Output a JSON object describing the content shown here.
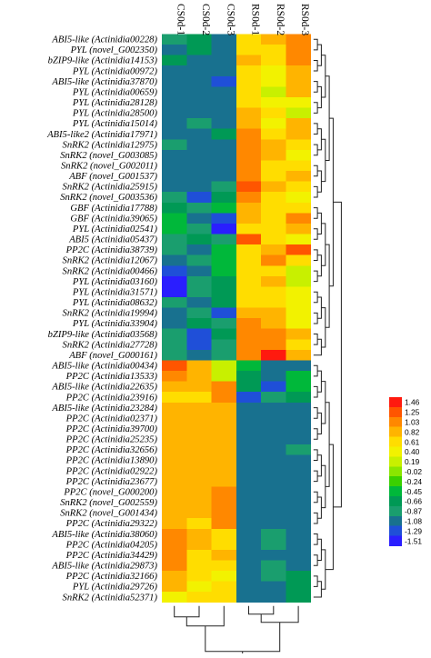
{
  "chart_data": {
    "type": "heatmap",
    "columns": [
      "CS0d-1",
      "CS0d-2",
      "CS0d-3",
      "RS0d-1",
      "RS0d-2",
      "RS0d-3"
    ],
    "rows": [
      "ABI5-like (Actinidia00228)",
      "PYL (novel_G002350)",
      "bZIP9-like (Actinidia14153)",
      "PYL (Actinidia00972)",
      "ABI5-like (Actinidia37870)",
      "PYL (Actinidia00659)",
      "PYL (Actinidia28128)",
      "PYL (Actinidia28500)",
      "PYL (Actinidia15014)",
      "ABI5-like2 (Actinidia17971)",
      "SnRK2 (Actinidia12975)",
      "SnRK2 (novel_G003085)",
      "SnRK2 (novel_G002011)",
      "ABF (novel_G001537)",
      "SnRK2 (Actinidia25915)",
      "SnRK2 (novel_G003536)",
      "GBF (Actinidia17788)",
      "GBF (Actinidia39065)",
      "PYL (Actinidia02541)",
      "ABI5 (Actinidia05437)",
      "PP2C (Actinidia38739)",
      "SnRK2 (Actinidia12067)",
      "SnRK2 (Actinidia00466)",
      "PYL (Actinidia03160)",
      "PYL (Actinidia31571)",
      "PYL (Actinidia08632)",
      "SnRK2 (Actinidia19994)",
      "PYL (Actinidia33904)",
      "bZIP9-like (Actinidia03568)",
      "SnRK2 (Actinidia27728)",
      "ABF (novel_G000161)",
      "ABI5-like (Actinidia00434)",
      "PP2C (Actinidia13533)",
      "ABI5-like (Actinidia22635)",
      "PP2C (Actinidia23916)",
      "ABI5-like (Actinidia23284)",
      "PP2C (Actinidia02371)",
      "PP2C (Actinidia39700)",
      "PP2C (Actinidia25235)",
      "PP2C (Actinidia32656)",
      "PP2C (Actinidia13890)",
      "PP2C (Actinidia02922)",
      "PP2C (Actinidia23677)",
      "PP2C (novel_G000200)",
      "SnRK2 (novel_G002559)",
      "SnRK2 (novel_G001434)",
      "PP2C (Actinidia29322)",
      "ABI5-like (Actinidia38060)",
      "PP2C (Actinidia04205)",
      "PP2C (Actinidia34429)",
      "ABI5-like (Actinidia29873)",
      "PP2C (Actinidia32166)",
      "PYL (Actinidia29726)",
      "SnRK2 (Actinidia52371)"
    ],
    "values": [
      [
        -0.87,
        -0.66,
        -1.08,
        0.61,
        0.82,
        1.03
      ],
      [
        -1.08,
        -0.66,
        -1.08,
        0.61,
        0.61,
        1.03
      ],
      [
        -0.66,
        -1.08,
        -1.08,
        0.82,
        0.61,
        1.03
      ],
      [
        -1.08,
        -1.08,
        -1.08,
        0.61,
        0.4,
        0.82
      ],
      [
        -1.08,
        -1.08,
        -1.29,
        0.61,
        0.4,
        0.82
      ],
      [
        -1.08,
        -1.08,
        -1.08,
        0.61,
        0.19,
        0.82
      ],
      [
        -1.08,
        -1.08,
        -1.08,
        0.61,
        0.4,
        0.4
      ],
      [
        -1.08,
        -1.08,
        -1.08,
        0.82,
        0.61,
        0.19
      ],
      [
        -1.08,
        -0.87,
        -1.08,
        0.82,
        0.4,
        0.82
      ],
      [
        -1.08,
        -1.08,
        -0.66,
        1.03,
        0.61,
        0.82
      ],
      [
        -0.87,
        -1.08,
        -1.08,
        1.03,
        0.82,
        0.61
      ],
      [
        -1.08,
        -1.08,
        -1.08,
        1.03,
        0.82,
        0.4
      ],
      [
        -1.08,
        -1.08,
        -1.08,
        1.03,
        0.61,
        0.61
      ],
      [
        -1.08,
        -1.08,
        -1.08,
        1.03,
        0.61,
        0.82
      ],
      [
        -1.08,
        -1.08,
        -0.87,
        1.25,
        0.82,
        0.61
      ],
      [
        -0.87,
        -1.29,
        -0.66,
        1.03,
        0.61,
        0.4
      ],
      [
        -0.66,
        -0.87,
        -0.45,
        0.82,
        0.61,
        0.61
      ],
      [
        -0.45,
        -1.08,
        -1.29,
        0.82,
        0.61,
        1.03
      ],
      [
        -0.45,
        -0.87,
        -1.51,
        0.61,
        0.61,
        0.82
      ],
      [
        -0.87,
        -0.66,
        -0.87,
        1.25,
        0.61,
        0.4
      ],
      [
        -0.87,
        -1.08,
        -0.45,
        0.61,
        0.82,
        1.25
      ],
      [
        -1.08,
        -0.87,
        -0.45,
        0.61,
        1.03,
        0.61
      ],
      [
        -1.29,
        -1.08,
        -0.45,
        0.61,
        0.61,
        0.19
      ],
      [
        -1.51,
        -0.87,
        -0.66,
        0.61,
        0.82,
        0.19
      ],
      [
        -1.51,
        -0.87,
        -0.66,
        0.61,
        0.61,
        0.4
      ],
      [
        -0.87,
        -1.08,
        -0.66,
        0.61,
        0.61,
        0.4
      ],
      [
        -1.08,
        -0.87,
        -1.29,
        0.82,
        0.82,
        0.4
      ],
      [
        -1.08,
        -0.66,
        -0.87,
        1.03,
        0.82,
        0.4
      ],
      [
        -0.87,
        -1.29,
        -0.66,
        1.03,
        1.03,
        0.82
      ],
      [
        -0.87,
        -1.29,
        -0.87,
        1.03,
        1.03,
        0.61
      ],
      [
        -0.87,
        -1.08,
        -0.87,
        1.03,
        1.46,
        0.82
      ],
      [
        1.25,
        0.82,
        0.19,
        -0.45,
        -1.08,
        -1.08
      ],
      [
        1.03,
        0.82,
        0.19,
        -0.66,
        -1.08,
        -0.45
      ],
      [
        0.82,
        0.82,
        1.03,
        -0.66,
        -1.29,
        -0.45
      ],
      [
        0.61,
        0.61,
        1.03,
        -1.29,
        -0.87,
        -0.66
      ],
      [
        0.82,
        0.82,
        0.82,
        -1.08,
        -1.08,
        -1.08
      ],
      [
        0.82,
        0.82,
        0.82,
        -1.08,
        -1.08,
        -1.08
      ],
      [
        0.82,
        0.82,
        0.82,
        -1.08,
        -1.08,
        -1.08
      ],
      [
        0.82,
        0.82,
        0.82,
        -1.08,
        -1.08,
        -1.08
      ],
      [
        0.82,
        0.82,
        0.82,
        -1.08,
        -1.08,
        -0.87
      ],
      [
        0.82,
        0.82,
        0.82,
        -1.08,
        -1.08,
        -1.08
      ],
      [
        0.82,
        0.82,
        0.82,
        -1.08,
        -1.08,
        -1.08
      ],
      [
        0.82,
        0.82,
        0.82,
        -1.08,
        -1.08,
        -1.08
      ],
      [
        0.82,
        0.82,
        1.03,
        -1.08,
        -1.08,
        -1.08
      ],
      [
        0.82,
        0.82,
        1.03,
        -1.08,
        -1.08,
        -1.08
      ],
      [
        0.82,
        0.82,
        1.03,
        -1.08,
        -1.08,
        -1.08
      ],
      [
        0.82,
        0.61,
        1.03,
        -1.08,
        -1.08,
        -1.08
      ],
      [
        1.03,
        0.82,
        0.61,
        -1.08,
        -0.87,
        -1.08
      ],
      [
        1.03,
        0.82,
        0.61,
        -1.08,
        -0.87,
        -1.08
      ],
      [
        1.03,
        0.61,
        0.82,
        -1.08,
        -1.08,
        -1.08
      ],
      [
        1.03,
        0.61,
        0.61,
        -1.08,
        -0.87,
        -1.08
      ],
      [
        0.82,
        0.61,
        0.4,
        -1.08,
        -0.87,
        -0.66
      ],
      [
        0.82,
        0.4,
        0.61,
        -1.08,
        -1.08,
        -0.66
      ],
      [
        0.4,
        0.61,
        0.61,
        -1.08,
        -1.08,
        -0.66
      ]
    ],
    "legend": {
      "ticks": [
        "1.46",
        "1.25",
        "1.03",
        "0.82",
        "0.61",
        "0.40",
        "0.19",
        "-0.02",
        "-0.24",
        "-0.45",
        "-0.66",
        "-0.87",
        "-1.08",
        "-1.29",
        "-1.51"
      ],
      "colors": [
        "#ff1a0f",
        "#ff5500",
        "#ff8800",
        "#ffb400",
        "#ffdd00",
        "#f2f200",
        "#c8f000",
        "#8ae600",
        "#3ad000",
        "#00b83a",
        "#009955",
        "#1a9e6e",
        "#18718f",
        "#1f4fd8",
        "#2a1eff"
      ],
      "placement": "right"
    },
    "title": "",
    "xlabel": "",
    "ylabel": ""
  }
}
